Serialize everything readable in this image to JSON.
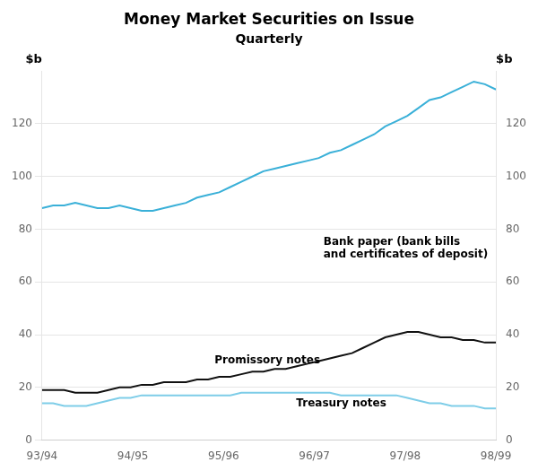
{
  "chart_data": {
    "type": "line",
    "title": "Money Market Securities on Issue",
    "subtitle": "Quarterly",
    "ylabel": "$b",
    "y2label": "$b",
    "x": [
      0,
      0.121951,
      0.243902,
      0.365854,
      0.487805,
      0.609756,
      0.731707,
      0.853659,
      0.97561,
      1.097561,
      1.219512,
      1.341463,
      1.463415,
      1.585366,
      1.707317,
      1.829268,
      1.95122,
      2.073171,
      2.195122,
      2.317073,
      2.439024,
      2.560976,
      2.682927,
      2.804878,
      2.926829,
      3.04878,
      3.170732,
      3.292683,
      3.414634,
      3.536585,
      3.658537,
      3.780488,
      3.902439,
      4.02439,
      4.146341,
      4.268293,
      4.390244,
      4.512195,
      4.634146,
      4.756098,
      4.878049,
      5
    ],
    "xlim": [
      0,
      5
    ],
    "xticks": [
      {
        "value": 0,
        "label": "93/94"
      },
      {
        "value": 1,
        "label": "94/95"
      },
      {
        "value": 2,
        "label": "95/96"
      },
      {
        "value": 3,
        "label": "96/97"
      },
      {
        "value": 4,
        "label": "97/98"
      },
      {
        "value": 5,
        "label": "98/99"
      }
    ],
    "ylim": [
      0,
      140
    ],
    "yticks": [
      0,
      20,
      40,
      60,
      80,
      100,
      120
    ],
    "y2lim": [
      0,
      140
    ],
    "y2ticks": [
      0,
      20,
      40,
      60,
      80,
      100,
      120
    ],
    "grid": true,
    "series": [
      {
        "color": "#3ab0d8",
        "values": [
          88,
          89,
          89,
          90,
          89,
          88,
          88,
          89,
          88,
          87,
          87,
          88,
          89,
          90,
          92,
          93,
          94,
          96,
          98,
          100,
          102,
          103,
          104,
          105,
          106,
          107,
          109,
          110,
          112,
          114,
          116,
          119,
          121,
          123,
          126,
          129,
          130,
          132,
          134,
          136,
          135,
          133
        ]
      },
      {
        "color": "#111111",
        "values": [
          19,
          19,
          19,
          18,
          18,
          18,
          19,
          20,
          20,
          21,
          21,
          22,
          22,
          22,
          23,
          23,
          24,
          24,
          25,
          26,
          26,
          27,
          27,
          28,
          29,
          30,
          31,
          32,
          33,
          35,
          37,
          39,
          40,
          41,
          41,
          40,
          39,
          39,
          38,
          38,
          37,
          37
        ]
      },
      {
        "color": "#7ecde8",
        "values": [
          14,
          14,
          13,
          13,
          13,
          14,
          15,
          16,
          16,
          17,
          17,
          17,
          17,
          17,
          17,
          17,
          17,
          17,
          18,
          18,
          18,
          18,
          18,
          18,
          18,
          18,
          18,
          17,
          17,
          17,
          17,
          17,
          17,
          16,
          15,
          14,
          14,
          13,
          13,
          13,
          12,
          12
        ]
      }
    ],
    "annotations": [
      "Bank paper (bank bills\nand certificates of deposit)",
      "Promissory notes",
      "Treasury notes"
    ]
  }
}
